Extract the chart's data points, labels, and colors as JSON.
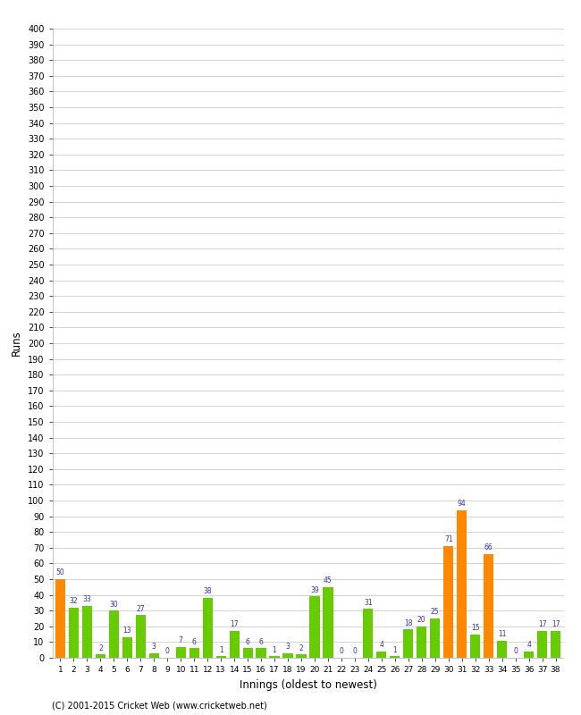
{
  "xlabel": "Innings (oldest to newest)",
  "ylabel": "Runs",
  "values": [
    50,
    32,
    33,
    2,
    30,
    13,
    27,
    3,
    0,
    7,
    6,
    38,
    1,
    17,
    6,
    6,
    1,
    3,
    2,
    39,
    45,
    0,
    0,
    31,
    4,
    1,
    18,
    20,
    25,
    71,
    94,
    15,
    66,
    11,
    0,
    4,
    17,
    17
  ],
  "colors": [
    "orange",
    "green",
    "green",
    "green",
    "green",
    "green",
    "green",
    "green",
    "green",
    "green",
    "green",
    "green",
    "green",
    "green",
    "green",
    "green",
    "green",
    "green",
    "green",
    "green",
    "green",
    "green",
    "green",
    "green",
    "green",
    "green",
    "green",
    "green",
    "green",
    "orange",
    "orange",
    "green",
    "orange",
    "green",
    "green",
    "green",
    "green",
    "green"
  ],
  "innings": [
    1,
    2,
    3,
    4,
    5,
    6,
    7,
    8,
    9,
    10,
    11,
    12,
    13,
    14,
    15,
    16,
    17,
    18,
    19,
    20,
    21,
    22,
    23,
    24,
    25,
    26,
    27,
    28,
    29,
    30,
    31,
    32,
    33,
    34,
    35,
    36,
    37,
    38
  ],
  "ylim": [
    0,
    400
  ],
  "bar_color_green": "#66cc00",
  "bar_color_orange": "#ff8800",
  "label_color": "#3333bb",
  "bg_color": "#ffffff",
  "grid_color": "#cccccc",
  "footer": "(C) 2001-2015 Cricket Web (www.cricketweb.net)"
}
